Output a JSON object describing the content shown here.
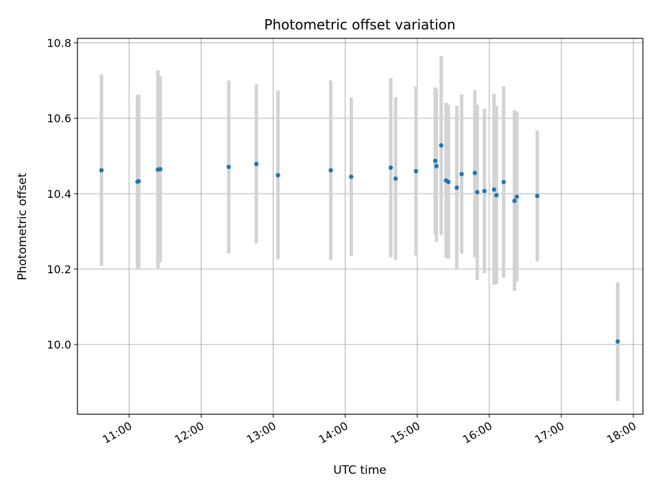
{
  "chart_data": {
    "type": "scatter",
    "title": "Photometric offset variation",
    "xlabel": "UTC time",
    "ylabel": "Photometric offset",
    "x_unit": "UTC time (hours)",
    "xlim": [
      "10:17",
      "18:08"
    ],
    "ylim": [
      9.815,
      10.812
    ],
    "x_ticks": [
      "11:00",
      "12:00",
      "13:00",
      "14:00",
      "15:00",
      "16:00",
      "17:00",
      "18:00"
    ],
    "y_ticks": [
      "10.0",
      "10.2",
      "10.4",
      "10.6",
      "10.8"
    ],
    "grid": true,
    "marker_color": "#1f77b4",
    "errorbar_color": "#d3d3d3",
    "points": [
      {
        "time": "10:37",
        "y": 10.462,
        "ylow": 10.208,
        "yhigh": 10.716
      },
      {
        "time": "11:07",
        "y": 10.432,
        "ylow": 10.202,
        "yhigh": 10.662
      },
      {
        "time": "11:08",
        "y": 10.433,
        "ylow": 10.203,
        "yhigh": 10.663
      },
      {
        "time": "11:24",
        "y": 10.464,
        "ylow": 10.202,
        "yhigh": 10.727
      },
      {
        "time": "11:26",
        "y": 10.465,
        "ylow": 10.218,
        "yhigh": 10.712
      },
      {
        "time": "12:23",
        "y": 10.471,
        "ylow": 10.242,
        "yhigh": 10.7
      },
      {
        "time": "12:46",
        "y": 10.479,
        "ylow": 10.268,
        "yhigh": 10.69
      },
      {
        "time": "13:04",
        "y": 10.449,
        "ylow": 10.226,
        "yhigh": 10.673
      },
      {
        "time": "13:48",
        "y": 10.462,
        "ylow": 10.224,
        "yhigh": 10.7
      },
      {
        "time": "14:05",
        "y": 10.445,
        "ylow": 10.234,
        "yhigh": 10.655
      },
      {
        "time": "14:38",
        "y": 10.469,
        "ylow": 10.231,
        "yhigh": 10.707
      },
      {
        "time": "14:42",
        "y": 10.44,
        "ylow": 10.224,
        "yhigh": 10.656
      },
      {
        "time": "14:59",
        "y": 10.46,
        "ylow": 10.236,
        "yhigh": 10.685
      },
      {
        "time": "15:15",
        "y": 10.487,
        "ylow": 10.291,
        "yhigh": 10.682
      },
      {
        "time": "15:16",
        "y": 10.473,
        "ylow": 10.272,
        "yhigh": 10.677
      },
      {
        "time": "15:20",
        "y": 10.528,
        "ylow": 10.29,
        "yhigh": 10.765
      },
      {
        "time": "15:24",
        "y": 10.435,
        "ylow": 10.229,
        "yhigh": 10.641
      },
      {
        "time": "15:26",
        "y": 10.431,
        "ylow": 10.227,
        "yhigh": 10.636
      },
      {
        "time": "15:33",
        "y": 10.416,
        "ylow": 10.2,
        "yhigh": 10.633
      },
      {
        "time": "15:37",
        "y": 10.452,
        "ylow": 10.241,
        "yhigh": 10.663
      },
      {
        "time": "15:48",
        "y": 10.455,
        "ylow": 10.231,
        "yhigh": 10.675
      },
      {
        "time": "15:50",
        "y": 10.404,
        "ylow": 10.171,
        "yhigh": 10.636
      },
      {
        "time": "15:56",
        "y": 10.407,
        "ylow": 10.189,
        "yhigh": 10.625
      },
      {
        "time": "16:04",
        "y": 10.411,
        "ylow": 10.158,
        "yhigh": 10.665
      },
      {
        "time": "16:06",
        "y": 10.396,
        "ylow": 10.16,
        "yhigh": 10.633
      },
      {
        "time": "16:12",
        "y": 10.431,
        "ylow": 10.177,
        "yhigh": 10.685
      },
      {
        "time": "16:21",
        "y": 10.381,
        "ylow": 10.142,
        "yhigh": 10.621
      },
      {
        "time": "16:23",
        "y": 10.392,
        "ylow": 10.167,
        "yhigh": 10.618
      },
      {
        "time": "16:40",
        "y": 10.394,
        "ylow": 10.221,
        "yhigh": 10.567
      },
      {
        "time": "17:47",
        "y": 10.008,
        "ylow": 9.85,
        "yhigh": 10.165
      }
    ]
  }
}
